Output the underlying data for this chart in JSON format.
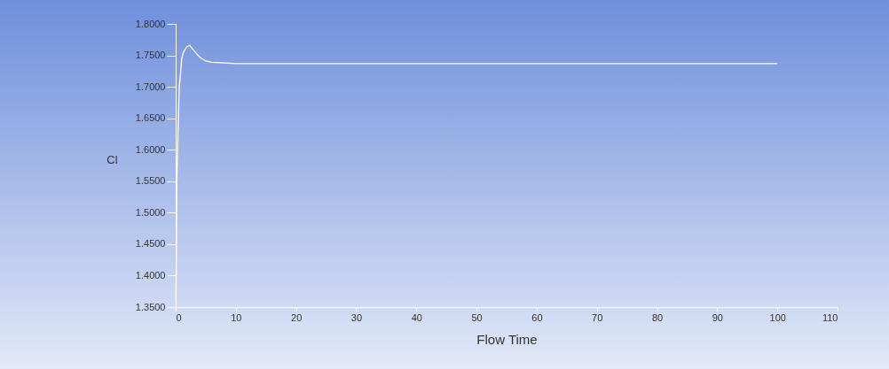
{
  "chart_data": {
    "type": "line",
    "xlabel": "Flow Time",
    "ylabel": "Cl",
    "series": [
      {
        "color": "#ffffff",
        "x": [
          0.05,
          0.1,
          0.2,
          0.4,
          0.6,
          0.8,
          1.0,
          1.3,
          1.8,
          2.3,
          3,
          4,
          5,
          6,
          8,
          10,
          20,
          100
        ],
        "values": [
          1.36,
          1.41,
          1.55,
          1.63,
          1.7,
          1.72,
          1.745,
          1.755,
          1.763,
          1.766,
          1.758,
          1.747,
          1.741,
          1.739,
          1.738,
          1.737,
          1.737,
          1.737
        ]
      }
    ],
    "xlim": [
      0,
      110
    ],
    "xticks": [
      0,
      10,
      20,
      30,
      40,
      50,
      60,
      70,
      80,
      90,
      100,
      110
    ],
    "ylim": [
      1.35,
      1.8
    ],
    "yticks": [
      {
        "value": 1.35,
        "label": "1.3500"
      },
      {
        "value": 1.4,
        "label": "1.4000"
      },
      {
        "value": 1.45,
        "label": "1.4500"
      },
      {
        "value": 1.5,
        "label": "1.5000"
      },
      {
        "value": 1.55,
        "label": "1.5500"
      },
      {
        "value": 1.6,
        "label": "1.6000"
      },
      {
        "value": 1.65,
        "label": "1.6500"
      },
      {
        "value": 1.7,
        "label": "1.7000"
      },
      {
        "value": 1.75,
        "label": "1.7500"
      },
      {
        "value": 1.8,
        "label": "1.8000"
      }
    ],
    "grid": false,
    "legend": false,
    "marker": "none",
    "line_style": "solid"
  }
}
